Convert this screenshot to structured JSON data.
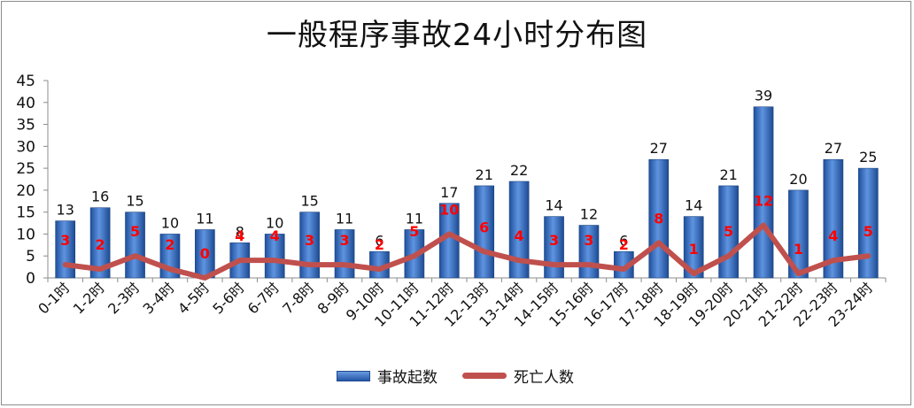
{
  "chart_data": {
    "type": "bar",
    "title": "一般程序事故24小时分布图",
    "categories": [
      "0-1时",
      "1-2时",
      "2-3时",
      "3-4时",
      "4-5时",
      "5-6时",
      "6-7时",
      "7-8时",
      "8-9时",
      "9-10时",
      "10-11时",
      "11-12时",
      "12-13时",
      "13-14时",
      "14-15时",
      "15-16时",
      "16-17时",
      "17-18时",
      "18-19时",
      "19-20时",
      "20-21时",
      "21-22时",
      "22-23时",
      "23-24时"
    ],
    "series": [
      {
        "name": "事故起数",
        "type": "bar",
        "color": "#2e6bc4",
        "values": [
          13,
          16,
          15,
          10,
          11,
          8,
          10,
          15,
          11,
          6,
          11,
          17,
          21,
          22,
          14,
          12,
          6,
          27,
          14,
          21,
          39,
          20,
          27,
          25
        ]
      },
      {
        "name": "死亡人数",
        "type": "line",
        "color": "#c0504d",
        "label_color": "#ff0000",
        "values": [
          3,
          2,
          5,
          2,
          0,
          4,
          4,
          3,
          3,
          2,
          5,
          10,
          6,
          4,
          3,
          3,
          2,
          8,
          1,
          5,
          12,
          1,
          4,
          5
        ]
      }
    ],
    "ylim": [
      0,
      45
    ],
    "yticks": [
      0,
      5,
      10,
      15,
      20,
      25,
      30,
      35,
      40,
      45
    ],
    "grid": false,
    "legend_position": "bottom"
  }
}
